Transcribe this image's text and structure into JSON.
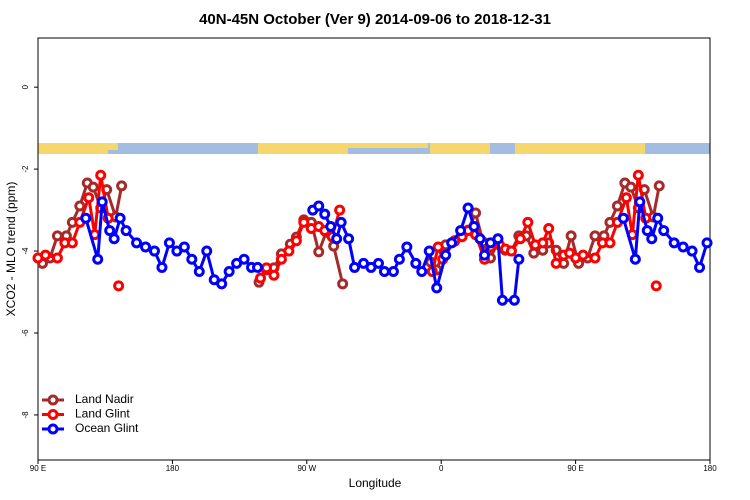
{
  "chart_data": {
    "type": "line",
    "title": "40N-45N October (Ver 9)   2014-09-06 to 2018-12-31",
    "x_label": "Longitude",
    "y_label": "XCO2 - MLO trend (ppm)",
    "xlim": [
      90,
      540
    ],
    "xticks": [
      {
        "value": 90,
        "label": "90 E"
      },
      {
        "value": 180,
        "label": "180"
      },
      {
        "value": 270,
        "label": "90 W"
      },
      {
        "value": 360,
        "label": "0"
      },
      {
        "value": 450,
        "label": "90 E"
      },
      {
        "value": 540,
        "label": "180"
      }
    ],
    "ylim": [
      -9.1,
      1.2
    ],
    "yticks": [
      0,
      -2,
      -4,
      -6,
      -8
    ],
    "legend": "bottom-left",
    "series": [
      {
        "name": "Land Nadir",
        "color": "#a52a2a",
        "x": [
          93,
          98,
          103,
          109,
          113,
          118,
          123,
          127,
          132,
          136,
          142,
          146,
          null,
          238,
          243,
          248,
          253,
          259,
          263,
          268,
          273,
          278,
          283,
          288,
          294,
          null,
          353,
          357,
          363,
          369,
          374,
          378,
          383,
          388,
          393,
          398,
          403,
          407,
          412,
          417,
          422,
          428,
          432,
          437,
          442,
          447,
          452,
          458,
          463,
          469,
          473,
          478,
          483,
          487,
          492,
          496,
          502,
          506
        ],
        "values": [
          -4.3,
          -4.17,
          -3.63,
          -3.63,
          -3.3,
          -2.9,
          -2.34,
          -2.44,
          -2.95,
          -2.5,
          -3.17,
          -2.41,
          null,
          -4.76,
          -4.46,
          -4.41,
          -4.07,
          -3.83,
          -3.66,
          -3.24,
          -3.3,
          -4.02,
          -3.54,
          -3.88,
          -4.8,
          null,
          -4.27,
          -4.46,
          -3.85,
          -3.76,
          -3.63,
          -3.49,
          -3.07,
          -3.78,
          -4.17,
          -3.78,
          -3.98,
          -4.0,
          -3.63,
          -3.63,
          -4.05,
          -3.98,
          -3.8,
          -3.98,
          -4.3,
          -3.63,
          -4.3,
          -4.17,
          -3.63,
          -3.63,
          -3.3,
          -2.9,
          -2.34,
          -2.44,
          -2.95,
          -2.5,
          -3.17,
          -2.41
        ]
      },
      {
        "name": "Land Glint",
        "color": "#ff0000",
        "x": [
          90,
          95,
          103,
          108,
          113,
          118,
          124,
          128,
          132,
          137,
          null,
          144,
          null,
          239,
          243,
          248,
          253,
          258,
          263,
          268,
          273,
          278,
          282,
          287,
          292,
          null,
          354,
          358,
          361,
          369,
          374,
          378,
          383,
          389,
          393,
          399,
          403,
          407,
          413,
          418,
          423,
          428,
          432,
          437,
          442,
          446,
          450,
          455,
          463,
          468,
          473,
          478,
          484,
          488,
          492,
          497,
          null,
          504
        ],
        "values": [
          -4.17,
          -4.1,
          -4.17,
          -3.8,
          -3.8,
          -3.3,
          -2.7,
          -3.6,
          -2.15,
          -3.2,
          null,
          -4.85,
          null,
          -4.66,
          -4.41,
          -4.59,
          -4.2,
          -4.0,
          -3.75,
          -3.3,
          -3.45,
          -3.4,
          -3.5,
          -3.65,
          -3.0,
          null,
          -4.5,
          -3.9,
          -4.2,
          -3.75,
          -3.65,
          -3.5,
          -3.6,
          -4.2,
          -3.9,
          -3.85,
          -3.95,
          -4.0,
          -3.7,
          -3.3,
          -3.85,
          -3.8,
          -3.45,
          -4.3,
          -4.1,
          -4.05,
          -4.17,
          -4.1,
          -4.17,
          -3.8,
          -3.8,
          -3.3,
          -2.7,
          -3.6,
          -2.15,
          -3.2,
          null,
          -4.85
        ]
      },
      {
        "name": "Ocean Glint",
        "color": "#0000ff",
        "x": [
          122,
          130,
          133,
          138,
          141,
          145,
          149,
          156,
          162,
          168,
          173,
          178,
          183,
          188,
          193,
          198,
          203,
          208,
          213,
          218,
          223,
          228,
          233,
          237,
          null,
          274,
          278,
          282,
          286,
          290,
          293,
          298,
          302,
          308,
          313,
          318,
          322,
          328,
          332,
          337,
          343,
          347,
          352,
          357,
          363,
          367,
          373,
          378,
          382,
          386,
          389,
          393,
          398,
          401,
          409,
          412,
          null,
          482,
          490,
          493,
          498,
          501,
          505,
          509,
          516,
          522,
          528,
          533,
          538
        ],
        "values": [
          -3.2,
          -4.2,
          -2.8,
          -3.5,
          -3.7,
          -3.2,
          -3.5,
          -3.8,
          -3.9,
          -4.0,
          -4.4,
          -3.8,
          -4.0,
          -3.9,
          -4.2,
          -4.5,
          -4.0,
          -4.7,
          -4.8,
          -4.5,
          -4.3,
          -4.2,
          -4.4,
          -4.4,
          null,
          -3.0,
          -2.9,
          -3.1,
          -3.4,
          -3.7,
          -3.3,
          -3.7,
          -4.4,
          -4.3,
          -4.4,
          -4.3,
          -4.5,
          -4.5,
          -4.2,
          -3.9,
          -4.3,
          -4.5,
          -4.0,
          -4.9,
          -4.1,
          -3.8,
          -3.5,
          -2.95,
          -3.4,
          -3.7,
          -4.1,
          -3.8,
          -3.7,
          -5.2,
          -5.2,
          -4.2,
          null,
          -3.2,
          -4.2,
          -2.8,
          -3.5,
          -3.7,
          -3.2,
          -3.5,
          -3.8,
          -3.9,
          -4.0,
          -4.4,
          -3.8
        ]
      }
    ]
  }
}
